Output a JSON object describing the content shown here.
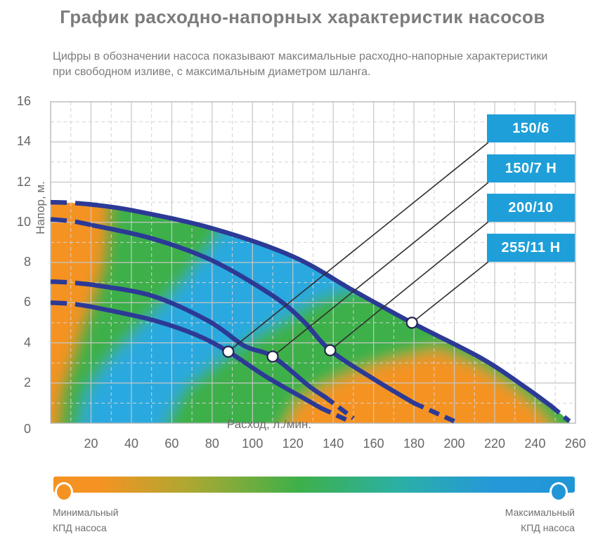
{
  "page": {
    "title": "График расходно-напорных характеристик насосов",
    "subtitle_line1": "Цифры в обозначении насоса показывают максимальные расходно-напорные характеристики",
    "subtitle_line2": "при свободном изливе, с максимальным диаметром шланга."
  },
  "colors": {
    "orange": "#F59322",
    "green": "#3EB049",
    "blue": "#2AA9E0",
    "curve_navy": "#2C3A96",
    "label_box_blue": "#1E9FD9",
    "callout_line": "#2e2e2e",
    "dot_ring": "#22254f",
    "grid_major": "#c6c6c6",
    "grid_minor": "#d2d2d2",
    "plot_border": "#b8b8b8",
    "legend_min_color": "#F59322",
    "legend_max_color": "#2196D6"
  },
  "pump_labels": [
    "150/6",
    "150/7 Н",
    "200/10",
    "255/11 Н"
  ],
  "legend": {
    "min_line1": "Минимальный",
    "min_line2": "КПД насоса",
    "max_line1": "Максимальный",
    "max_line2": "КПД насоса",
    "gradient_stops": [
      "#F59322",
      "#F59322 9%",
      "#ADA832 26%",
      "#3EB049 47%",
      "#2BB0A4 66%",
      "#2598D8 84%",
      "#2196D6"
    ]
  },
  "chart_data": {
    "type": "line",
    "title": "График расходно-напорных характеристик насосов",
    "xlabel": "Расход, л./мин.",
    "ylabel": "Напор, м.",
    "xlim": [
      0,
      260
    ],
    "ylim": [
      0,
      16
    ],
    "x_ticks": [
      20,
      40,
      60,
      80,
      100,
      120,
      140,
      160,
      180,
      200,
      220,
      240,
      260
    ],
    "y_ticks": [
      0,
      2,
      4,
      6,
      8,
      10,
      12,
      14,
      16
    ],
    "grid": "major solid every 20 l/min and 2 m; minor dashed every 10 l/min and 1 m",
    "legend_position": "right callout boxes",
    "envelope_series": 3,
    "series": [
      {
        "name": "150/6",
        "marker": [
          88,
          3.56
        ],
        "segments": {
          "dashed_head": [
            [
              0,
              6.0
            ],
            [
              10,
              5.95
            ],
            [
              20,
              5.8
            ]
          ],
          "solid": [
            [
              20,
              5.8
            ],
            [
              50,
              5.15
            ],
            [
              72,
              4.4
            ],
            [
              88,
              3.56
            ],
            [
              107,
              2.3
            ],
            [
              127,
              1.15
            ],
            [
              134,
              0.75
            ]
          ],
          "dashed_tail": [
            [
              134,
              0.75
            ],
            [
              148,
              0.1
            ]
          ]
        }
      },
      {
        "name": "150/7 Н",
        "marker": [
          110,
          3.32
        ],
        "segments": {
          "dashed_head": [
            [
              0,
              7.05
            ],
            [
              10,
              7.0
            ],
            [
              20,
              6.9
            ]
          ],
          "solid": [
            [
              20,
              6.9
            ],
            [
              50,
              6.35
            ],
            [
              78,
              5.1
            ],
            [
              96,
              3.85
            ],
            [
              110,
              3.32
            ],
            [
              128,
              1.85
            ],
            [
              136,
              1.3
            ]
          ],
          "dashed_tail": [
            [
              136,
              1.3
            ],
            [
              150,
              0.25
            ]
          ]
        }
      },
      {
        "name": "200/10",
        "marker": [
          138.5,
          3.63
        ],
        "segments": {
          "dashed_head": [
            [
              0,
              10.15
            ],
            [
              11,
              10.05
            ],
            [
              21,
              9.85
            ]
          ],
          "solid": [
            [
              21,
              9.85
            ],
            [
              50,
              9.2
            ],
            [
              80,
              8.1
            ],
            [
              110,
              6.35
            ],
            [
              125,
              5.1
            ],
            [
              138.5,
              3.63
            ],
            [
              160,
              2.2
            ],
            [
              180,
              1.0
            ]
          ],
          "dashed_tail": [
            [
              180,
              1.0
            ],
            [
              200,
              0.1
            ]
          ]
        }
      },
      {
        "name": "255/11 Н",
        "marker": [
          179,
          5.0
        ],
        "segments": {
          "dashed_head": [
            [
              0,
              11.0
            ],
            [
              10,
              10.97
            ],
            [
              19,
              10.9
            ]
          ],
          "solid": [
            [
              19,
              10.9
            ],
            [
              40,
              10.6
            ],
            [
              80,
              9.7
            ],
            [
              120,
              8.3
            ],
            [
              150,
              6.6
            ],
            [
              179,
              5.0
            ],
            [
              214,
              3.2
            ],
            [
              235,
              1.8
            ],
            [
              248,
              0.85
            ]
          ],
          "dashed_tail": [
            [
              248,
              0.85
            ],
            [
              257,
              0.1
            ]
          ]
        }
      }
    ],
    "efficiency_field": {
      "description": "Цветовая карта КПД под верхней кривой: оранжевый = минимальный КПД, зелёный = средний, синий = максимальный",
      "bands": [
        {
          "color_key": "green",
          "points": [
            [
              3,
              -2
            ],
            [
              6,
              1.5
            ],
            [
              11,
              3
            ],
            [
              17,
              5
            ],
            [
              23,
              6.5
            ],
            [
              27,
              8
            ],
            [
              29,
              10
            ],
            [
              30,
              13
            ],
            [
              262,
              13
            ],
            [
              262,
              -2
            ]
          ]
        },
        {
          "color_key": "orange",
          "points": [
            [
              106,
              -2
            ],
            [
              124,
              1.2
            ],
            [
              145,
              2.3
            ],
            [
              168,
              3.1
            ],
            [
              192,
              3.65
            ],
            [
              213,
              2.75
            ],
            [
              230,
              1.65
            ],
            [
              242,
              0.6
            ],
            [
              250,
              -0.5
            ],
            [
              256,
              -2
            ]
          ]
        },
        {
          "color_key": "blue",
          "points": [
            [
              11,
              -2
            ],
            [
              18,
              1.5
            ],
            [
              28,
              3
            ],
            [
              42,
              4.5
            ],
            [
              55,
              5.8
            ],
            [
              68,
              7.3
            ],
            [
              78,
              8.6
            ],
            [
              85,
              9.6
            ],
            [
              88,
              13
            ],
            [
              160,
              8.0
            ],
            [
              155,
              6.9
            ],
            [
              132,
              6.2
            ],
            [
              112,
              5.0
            ],
            [
              90,
              3.7
            ],
            [
              66,
              1.8
            ],
            [
              46,
              -2
            ]
          ]
        }
      ]
    }
  }
}
